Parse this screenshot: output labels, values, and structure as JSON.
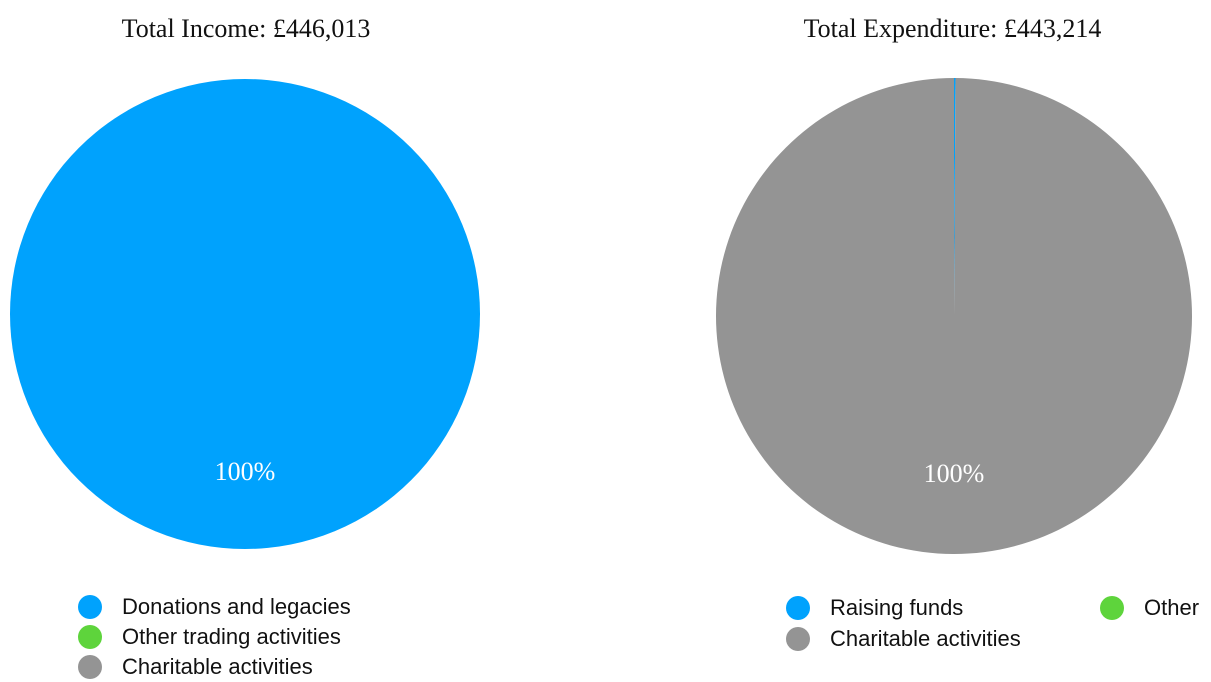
{
  "chart_data": [
    {
      "type": "pie",
      "title": "Total Income: £446,013",
      "slices": [
        {
          "label": "Donations and legacies",
          "value": 100,
          "color": "#00a2fd"
        },
        {
          "label": "Other trading activities",
          "value": 0,
          "color": "#5ed43c"
        },
        {
          "label": "Charitable activities",
          "value": 0,
          "color": "#949494"
        }
      ],
      "data_labels": [
        "100%"
      ],
      "legend": "bottom"
    },
    {
      "type": "pie",
      "title": "Total Expenditure: £443,214",
      "slices": [
        {
          "label": "Raising funds",
          "value": 0.1,
          "color": "#00a2fd"
        },
        {
          "label": "Other",
          "value": 0,
          "color": "#5ed43c"
        },
        {
          "label": "Charitable activities",
          "value": 99.9,
          "color": "#949494"
        }
      ],
      "data_labels": [
        "100%"
      ],
      "legend": "bottom"
    }
  ]
}
